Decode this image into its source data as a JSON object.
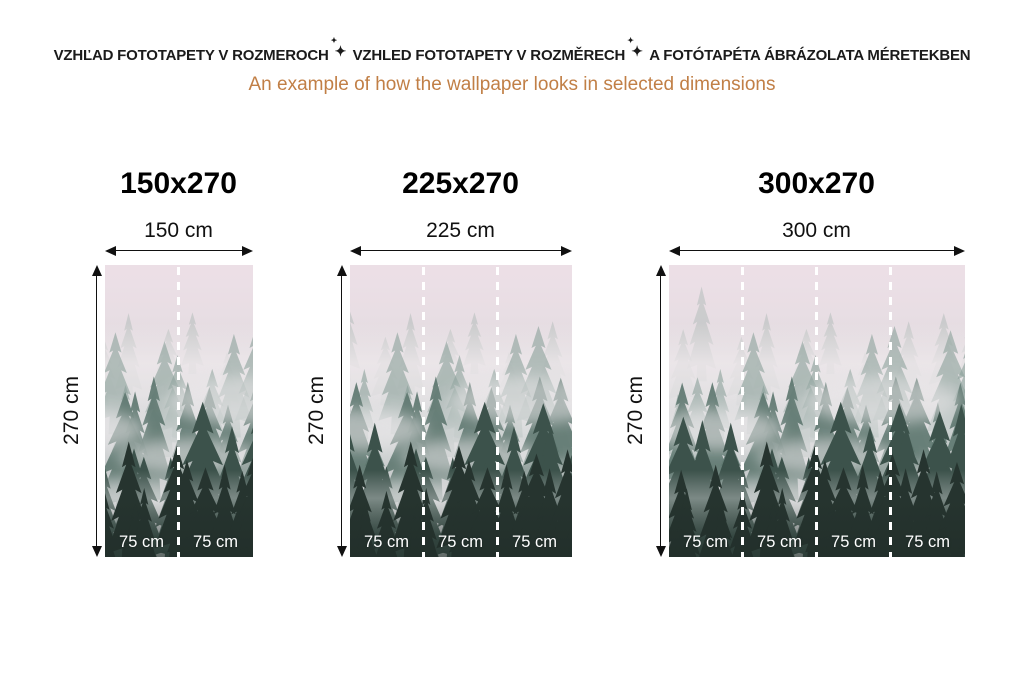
{
  "header": {
    "title_segments": [
      "VZHĽAD FOTOTAPETY V ROZMEROCH",
      "VZHLED FOTOTAPETY V ROZMĚRECH",
      "A FOTÓTAPÉTA ÁBRÁZOLATA MÉRETEKBEN"
    ],
    "separator_icon": "sparkle-star",
    "subtitle": "An example of how the wallpaper looks in selected dimensions"
  },
  "colors": {
    "title_text": "#1b1b1b",
    "subtitle_text": "#c17f46",
    "measure_lines": "#111111",
    "segment_divider": "#ffffff",
    "segment_label": "#ffffff"
  },
  "wallpaper": {
    "image_alt": "misty-foggy-pine-forest-wallpaper"
  },
  "panels": [
    {
      "title": "150x270",
      "width_label": "150 cm",
      "height_label": "270 cm",
      "segments": [
        "75 cm",
        "75 cm"
      ]
    },
    {
      "title": "225x270",
      "width_label": "225 cm",
      "height_label": "270 cm",
      "segments": [
        "75 cm",
        "75 cm",
        "75 cm"
      ]
    },
    {
      "title": "300x270",
      "width_label": "300 cm",
      "height_label": "270 cm",
      "segments": [
        "75 cm",
        "75 cm",
        "75 cm",
        "75 cm"
      ]
    }
  ]
}
